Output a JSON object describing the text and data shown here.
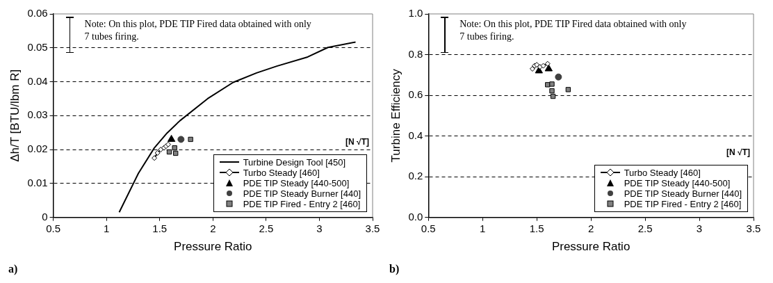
{
  "chart_data": [
    {
      "type": "scatter",
      "xlabel": "Pressure Ratio",
      "ylabel": "Δh/T [BTU/lbm R]",
      "xlim": [
        0.5,
        3.5
      ],
      "ylim": [
        0,
        0.06
      ],
      "xticks": [
        0.5,
        1,
        1.5,
        2,
        2.5,
        3,
        3.5
      ],
      "yticks": [
        0,
        0.01,
        0.02,
        0.03,
        0.04,
        0.05,
        0.06
      ],
      "grid": "y",
      "legend": "bottom right",
      "annotations": [
        "Note:  On this plot, PDE TIP Fired data obtained with only 7 tubes firing.",
        "[N √T]",
        "a)"
      ],
      "series": [
        {
          "name": "Turbine Design Tool [450]",
          "type": "line",
          "marker": "none",
          "line_style": "solid",
          "color": "#000000",
          "x": [
            1.12,
            1.3,
            1.45,
            1.57,
            1.69,
            1.95,
            2.19,
            2.41,
            2.6,
            2.89,
            3.08,
            3.34
          ],
          "values": [
            0.0015,
            0.013,
            0.0205,
            0.0249,
            0.0285,
            0.035,
            0.0398,
            0.0426,
            0.0446,
            0.0473,
            0.0501,
            0.0517
          ]
        },
        {
          "name": "Turbo Steady [460]",
          "type": "line",
          "marker": "diamond",
          "line_style": "solid",
          "color": "#000000",
          "x": [
            1.45,
            1.48,
            1.51,
            1.54,
            1.56,
            1.58
          ],
          "values": [
            0.0175,
            0.019,
            0.02,
            0.0205,
            0.021,
            0.0215
          ]
        },
        {
          "name": "PDE TIP Steady [440-500]",
          "type": "scatter",
          "marker": "triangle",
          "color": "#000000",
          "x": [
            1.61
          ],
          "values": [
            0.023
          ]
        },
        {
          "name": "PDE TIP Steady Burner [440]",
          "type": "scatter",
          "marker": "circle",
          "color": "#404040",
          "x": [
            1.7
          ],
          "values": [
            0.023
          ]
        },
        {
          "name": "PDE TIP Fired - Entry 2 [460]",
          "type": "scatter",
          "marker": "square",
          "color": "#808080",
          "x": [
            1.59,
            1.64,
            1.65,
            1.79
          ],
          "values": [
            0.0193,
            0.0205,
            0.0189,
            0.023
          ]
        }
      ]
    },
    {
      "type": "scatter",
      "xlabel": "Pressure Ratio",
      "ylabel": "Turbine Efficiency",
      "xlim": [
        0.5,
        3.5
      ],
      "ylim": [
        0,
        1
      ],
      "xticks": [
        0.5,
        1,
        1.5,
        2,
        2.5,
        3,
        3.5
      ],
      "yticks": [
        {
          "value": 0,
          "label": "0.0"
        },
        0.2,
        0.4,
        0.6,
        0.8,
        {
          "value": 1,
          "label": "1.0"
        }
      ],
      "grid": "y",
      "legend": "bottom right",
      "annotations": [
        "Note:  On this plot, PDE TIP Fired data obtained with only 7 tubes firing.",
        "[N √T]",
        "b)"
      ],
      "series": [
        {
          "name": "Turbo Steady [460]",
          "type": "line",
          "marker": "diamond",
          "line_style": "solid",
          "color": "#000000",
          "x": [
            1.46,
            1.48,
            1.5,
            1.53,
            1.56,
            1.6
          ],
          "values": [
            0.73,
            0.745,
            0.75,
            0.74,
            0.745,
            0.755
          ]
        },
        {
          "name": "PDE TIP Steady [440-500]",
          "type": "scatter",
          "marker": "triangle",
          "color": "#000000",
          "x": [
            1.52,
            1.61
          ],
          "values": [
            0.72,
            0.73
          ]
        },
        {
          "name": "PDE TIP Steady Burner [440]",
          "type": "scatter",
          "marker": "circle",
          "color": "#404040",
          "x": [
            1.7
          ],
          "values": [
            0.69
          ]
        },
        {
          "name": "PDE TIP Fired - Entry 2 [460]",
          "type": "scatter",
          "marker": "square",
          "color": "#808080",
          "x": [
            1.6,
            1.64,
            1.64,
            1.65,
            1.79
          ],
          "values": [
            0.652,
            0.655,
            0.622,
            0.595,
            0.628
          ]
        }
      ]
    }
  ]
}
